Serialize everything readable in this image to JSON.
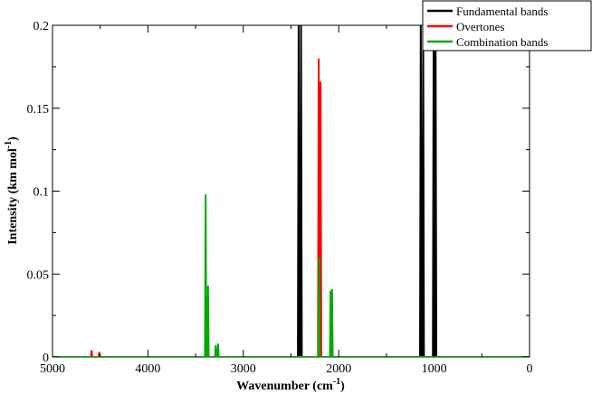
{
  "chart_data": {
    "type": "line",
    "xlabel": "Wavenumber (cm",
    "xlabel_sup": "-1",
    "xlabel_end": ")",
    "ylabel": "Intensity (km mol",
    "ylabel_sup": "-1",
    "ylabel_end": ")",
    "xlim": [
      5000,
      0
    ],
    "ylim": [
      0,
      0.2
    ],
    "x_ticks": [
      5000,
      4000,
      3000,
      2000,
      1000,
      0
    ],
    "x_tick_labels": [
      "5000",
      "4000",
      "3000",
      "2000",
      "1000",
      "0"
    ],
    "y_ticks": [
      0,
      0.05,
      0.1,
      0.15,
      0.2
    ],
    "y_tick_labels": [
      "0",
      "0.05",
      "0.1",
      "0.15",
      "0.2"
    ],
    "legend_position": "top-right",
    "series": [
      {
        "name": "Fundamental bands",
        "color": "#000000",
        "peaks": [
          {
            "x": 2420,
            "y": 0.2,
            "w": 8
          },
          {
            "x": 2395,
            "y": 0.2,
            "w": 8
          },
          {
            "x": 1140,
            "y": 0.2,
            "w": 8
          },
          {
            "x": 1115,
            "y": 0.2,
            "w": 8
          },
          {
            "x": 1005,
            "y": 0.2,
            "w": 8
          },
          {
            "x": 985,
            "y": 0.2,
            "w": 8
          }
        ]
      },
      {
        "name": "Overtones",
        "color": "#ff0000",
        "peaks": [
          {
            "x": 4590,
            "y": 0.004,
            "w": 8
          },
          {
            "x": 4510,
            "y": 0.003,
            "w": 8
          },
          {
            "x": 2210,
            "y": 0.18,
            "w": 7
          },
          {
            "x": 2190,
            "y": 0.166,
            "w": 7
          }
        ]
      },
      {
        "name": "Combination bands",
        "color": "#00aa00",
        "peaks": [
          {
            "x": 3395,
            "y": 0.098,
            "w": 7
          },
          {
            "x": 3370,
            "y": 0.043,
            "w": 7
          },
          {
            "x": 3290,
            "y": 0.007,
            "w": 7
          },
          {
            "x": 3265,
            "y": 0.008,
            "w": 7
          },
          {
            "x": 2205,
            "y": 0.06,
            "w": 7
          },
          {
            "x": 2085,
            "y": 0.04,
            "w": 7
          },
          {
            "x": 2070,
            "y": 0.041,
            "w": 7
          }
        ]
      }
    ]
  }
}
